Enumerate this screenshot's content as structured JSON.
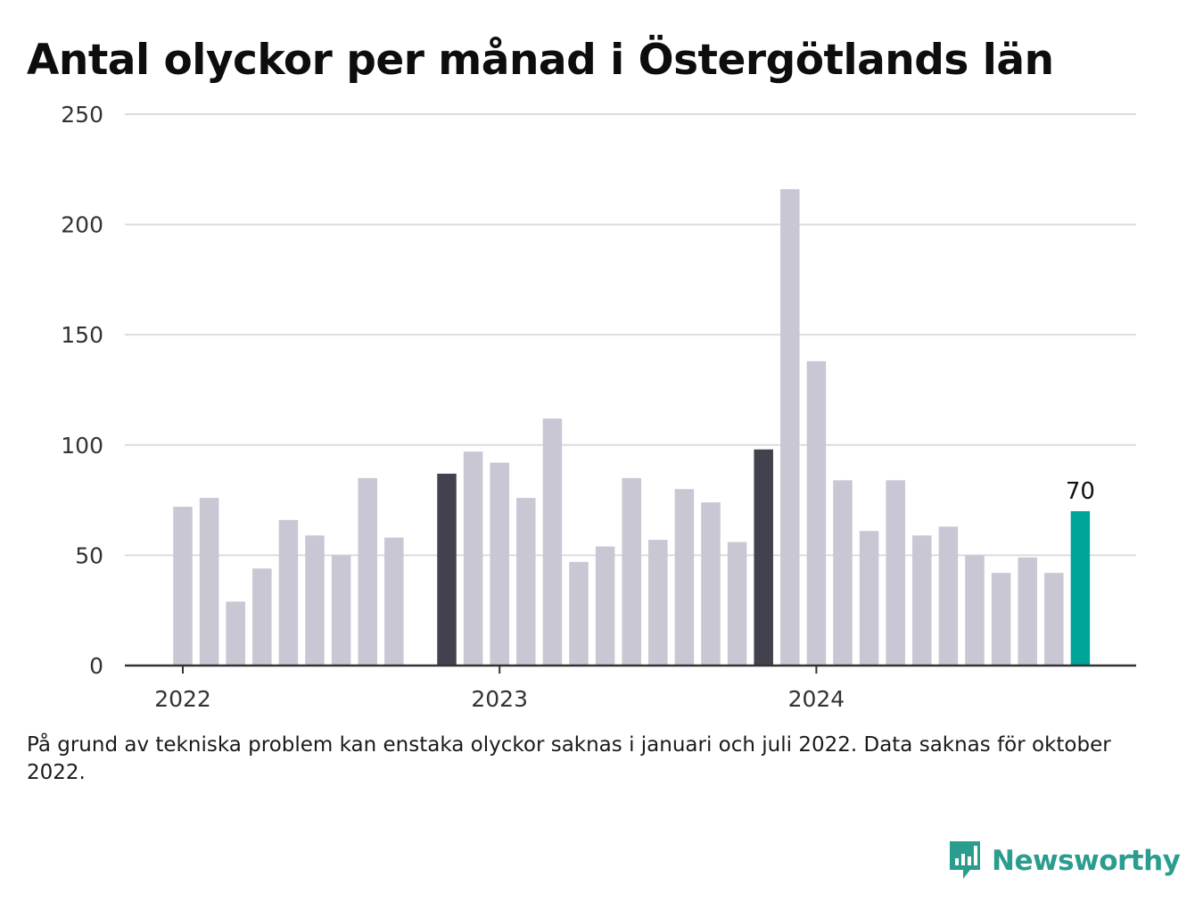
{
  "chart_data": {
    "type": "bar",
    "title": "Antal olyckor per månad i Östergötlands län",
    "xlabel": "",
    "ylabel": "",
    "ylim": [
      0,
      250
    ],
    "yticks": [
      0,
      50,
      100,
      150,
      200,
      250
    ],
    "xtick_labels": [
      {
        "label": "2022",
        "at": "2022-01"
      },
      {
        "label": "2023",
        "at": "2023-01"
      },
      {
        "label": "2024",
        "at": "2024-01"
      }
    ],
    "grid": true,
    "legend": "none",
    "categories": [
      "2022-01",
      "2022-02",
      "2022-03",
      "2022-04",
      "2022-05",
      "2022-06",
      "2022-07",
      "2022-08",
      "2022-09",
      "2022-10",
      "2022-11",
      "2022-12",
      "2023-01",
      "2023-02",
      "2023-03",
      "2023-04",
      "2023-05",
      "2023-06",
      "2023-07",
      "2023-08",
      "2023-09",
      "2023-10",
      "2023-11",
      "2023-12",
      "2024-01",
      "2024-02",
      "2024-03",
      "2024-04",
      "2024-05",
      "2024-06",
      "2024-07",
      "2024-08",
      "2024-09",
      "2024-10",
      "2024-11",
      "2024-12"
    ],
    "values": [
      72,
      76,
      29,
      44,
      66,
      59,
      50,
      85,
      58,
      null,
      87,
      97,
      92,
      76,
      112,
      47,
      54,
      85,
      57,
      80,
      74,
      56,
      98,
      216,
      138,
      84,
      61,
      84,
      59,
      63,
      50,
      42,
      49,
      42,
      70,
      null
    ],
    "highlight_dark": [
      "2022-11",
      "2023-11"
    ],
    "highlight_last": "2024-11",
    "data_labels": [
      {
        "category": "2024-11",
        "text": "70"
      }
    ],
    "colors": {
      "default": "#c8c7d3",
      "dark": "#42424e",
      "last": "#00a59a",
      "grid": "#dcdcdc",
      "axis": "#333333"
    }
  },
  "note": "På grund av tekniska problem kan enstaka olyckor saknas i januari och juli 2022. Data saknas för oktober 2022.",
  "brand": {
    "name": "Newsworthy",
    "icon": "chart-speech-bubble-icon",
    "color": "#2a9d8f"
  }
}
